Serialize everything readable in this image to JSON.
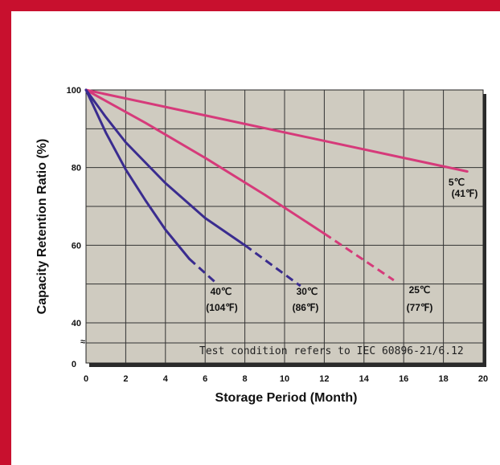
{
  "chart_data": {
    "type": "line",
    "xlabel": "Storage Period (Month)",
    "ylabel": "Capacity Retention Ratio (%)",
    "xlim": [
      0,
      20
    ],
    "ylim": [
      40,
      100
    ],
    "x_ticks": [
      "0",
      "2",
      "4",
      "6",
      "8",
      "10",
      "12",
      "14",
      "16",
      "18",
      "20"
    ],
    "y_ticks": [
      "100",
      "80",
      "60",
      "40"
    ],
    "y_zero_label": "0",
    "axis_break_symbol": "≈",
    "grid": true,
    "annotation": "Test condition refers to IEC 60896-21/6.12",
    "series": [
      {
        "name": "5℃",
        "name_f": "(41℉)",
        "color": "#d63a7a",
        "points": [
          [
            0,
            100
          ],
          [
            19.2,
            79
          ]
        ],
        "dashed_points": []
      },
      {
        "name": "25℃",
        "name_f": "(77℉)",
        "color": "#d63a7a",
        "points": [
          [
            0,
            100
          ],
          [
            3,
            91.5
          ],
          [
            6,
            82.5
          ],
          [
            9,
            73
          ],
          [
            12,
            63
          ]
        ],
        "dashed_points": [
          [
            12,
            63
          ],
          [
            15.5,
            51
          ]
        ]
      },
      {
        "name": "30℃",
        "name_f": "(86℉)",
        "color": "#3a2c8f",
        "points": [
          [
            0,
            100
          ],
          [
            1,
            93
          ],
          [
            2,
            86.5
          ],
          [
            4,
            76
          ],
          [
            6,
            67
          ],
          [
            8,
            60
          ]
        ],
        "dashed_points": [
          [
            8,
            60
          ],
          [
            10.8,
            49.5
          ]
        ]
      },
      {
        "name": "40℃",
        "name_f": "(104℉)",
        "color": "#3a2c8f",
        "points": [
          [
            0,
            100
          ],
          [
            1,
            89
          ],
          [
            2,
            79.5
          ],
          [
            3,
            71.5
          ],
          [
            4,
            64
          ],
          [
            5.2,
            56.5
          ]
        ],
        "dashed_points": [
          [
            5.2,
            56.5
          ],
          [
            6.5,
            50.5
          ]
        ]
      }
    ]
  }
}
